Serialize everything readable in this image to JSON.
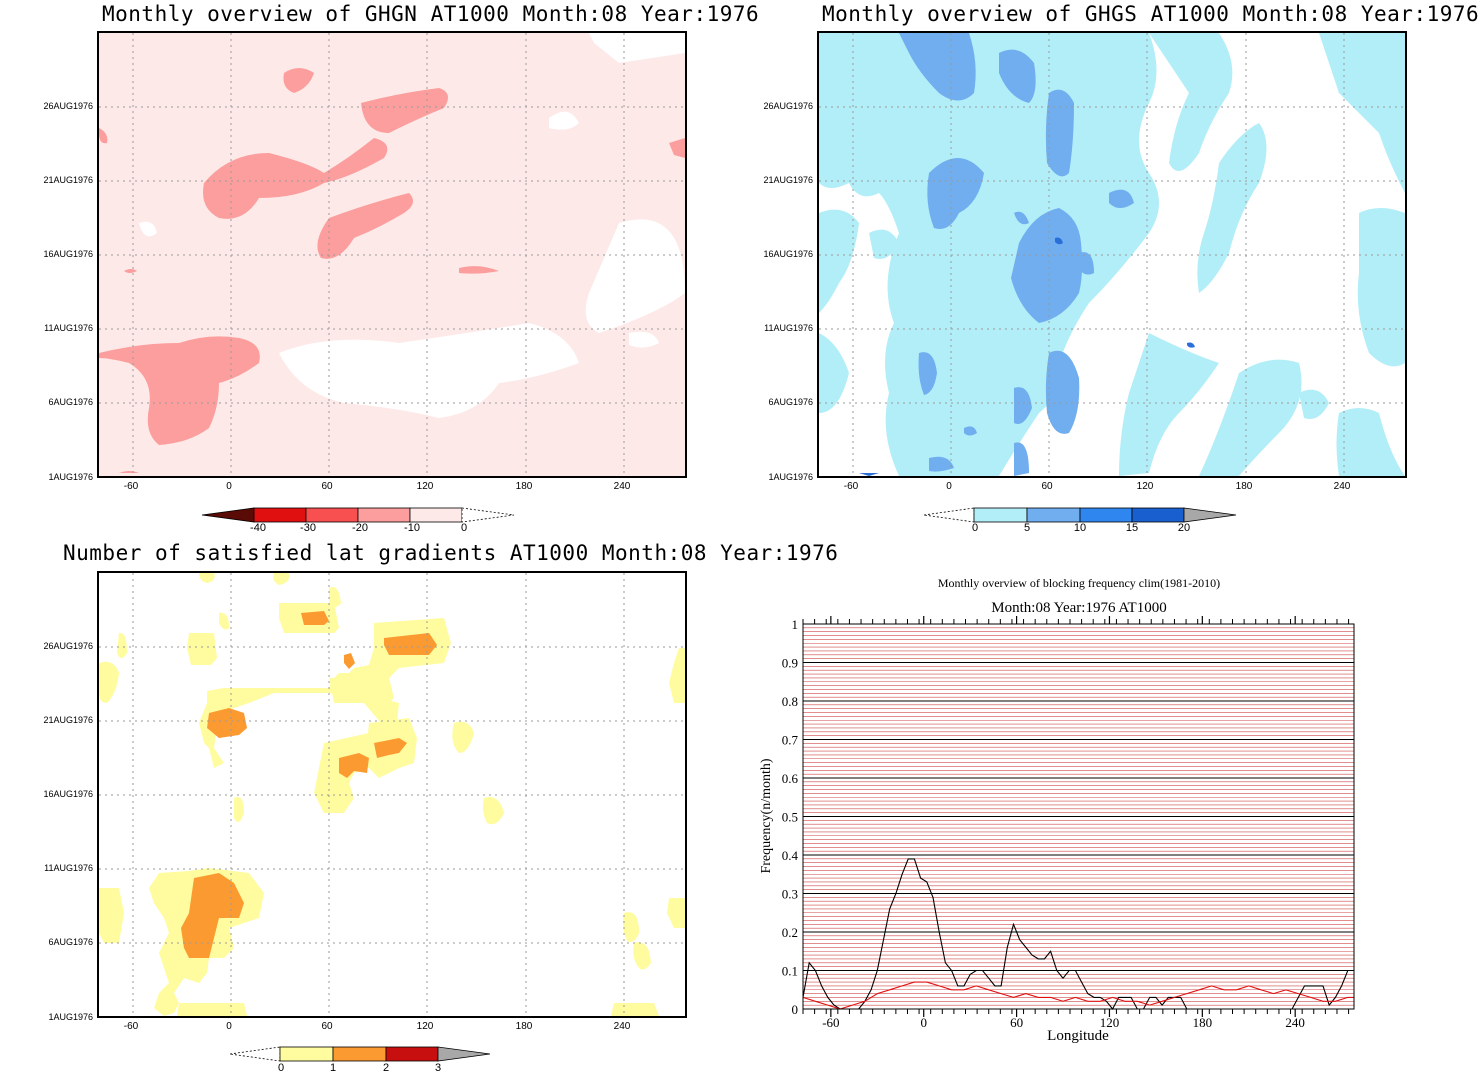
{
  "panels": {
    "ghgn": {
      "title": "Monthly overview of GHGN AT1000 Month:08 Year:1976",
      "fill_color": "#fde9e8",
      "blob_color": "#fb9e9d",
      "white_color": "#ffffff",
      "colorbar": {
        "labels": [
          "-40",
          "-30",
          "-20",
          "-10",
          "0"
        ],
        "colors": [
          "#5a0b05",
          "#e01010",
          "#f85050",
          "#fb9e9d",
          "#fde9e8"
        ]
      }
    },
    "ghgs": {
      "title": "Monthly overview of GHGS AT1000 Month:08 Year:1976",
      "fill_color": "#b2eef8",
      "blob_color": "#70aef0",
      "dark_color": "#2a6fd8",
      "colorbar": {
        "labels": [
          "0",
          "5",
          "10",
          "15",
          "20"
        ],
        "colors": [
          "#b2eef8",
          "#70aef0",
          "#2f86ee",
          "#1a5fcf",
          "#a8a8a8"
        ]
      }
    },
    "lat": {
      "title": "Number of satisfied lat gradients AT1000 Month:08 Year:1976",
      "yellow_color": "#fefc9e",
      "orange_color": "#fc9a32",
      "colorbar": {
        "labels": [
          "0",
          "1",
          "2",
          "3"
        ],
        "colors": [
          "#fefc9e",
          "#fc9a32",
          "#c80f0f",
          "#a8a8a8"
        ]
      }
    }
  },
  "time_axis": {
    "ticks": [
      "26AUG1976",
      "21AUG1976",
      "16AUG1976",
      "11AUG1976",
      "6AUG1976",
      "1AUG1976"
    ]
  },
  "lon_axis": {
    "ticks": [
      "-60",
      "0",
      "60",
      "120",
      "180",
      "240"
    ]
  },
  "chart_data": {
    "type": "line",
    "title": "Monthly overview of blocking frequency clim(1981-2010)",
    "subtitle": "Month:08 Year:1976  AT1000",
    "xlabel": "Longitude",
    "ylabel": "Frequency(n/month)",
    "xlim": [
      -78,
      278
    ],
    "ylim": [
      0,
      1
    ],
    "x_ticks": [
      "-60",
      "0",
      "60",
      "120",
      "180",
      "240"
    ],
    "y_ticks": [
      "0",
      "0.1",
      "0.2",
      "0.3",
      "0.4",
      "0.5",
      "0.6",
      "0.7",
      "0.8",
      "0.9",
      "1"
    ],
    "series": [
      {
        "color": "#000000",
        "x": [
          -78,
          -74,
          -70,
          -66,
          -62,
          -58,
          -54,
          -50,
          -46,
          -42,
          -38,
          -34,
          -30,
          -26,
          -22,
          -18,
          -14,
          -10,
          -6,
          -2,
          2,
          6,
          10,
          14,
          18,
          22,
          26,
          30,
          34,
          38,
          42,
          46,
          50,
          54,
          58,
          62,
          66,
          70,
          74,
          78,
          82,
          86,
          90,
          94,
          98,
          102,
          106,
          110,
          114,
          118,
          122,
          126,
          130,
          134,
          138,
          142,
          146,
          150,
          154,
          158,
          162,
          166,
          170,
          174,
          178,
          182,
          186,
          190,
          194,
          198,
          202,
          206,
          210,
          214,
          218,
          222,
          226,
          230,
          234,
          238,
          242,
          246,
          250,
          254,
          258,
          262,
          266,
          270,
          274,
          278
        ],
        "values": [
          0.03,
          0.12,
          0.1,
          0.06,
          0.03,
          0.01,
          0.0,
          0.0,
          0.0,
          0.0,
          0.02,
          0.05,
          0.1,
          0.18,
          0.26,
          0.3,
          0.35,
          0.39,
          0.39,
          0.34,
          0.33,
          0.29,
          0.2,
          0.12,
          0.1,
          0.06,
          0.06,
          0.09,
          0.1,
          0.1,
          0.08,
          0.06,
          0.06,
          0.16,
          0.22,
          0.18,
          0.16,
          0.14,
          0.13,
          0.13,
          0.15,
          0.1,
          0.08,
          0.1,
          0.1,
          0.07,
          0.04,
          0.03,
          0.03,
          0.02,
          0.0,
          0.03,
          0.03,
          0.03,
          0.0,
          0.0,
          0.03,
          0.03,
          0.01,
          0.03,
          0.03,
          0.03,
          0.0,
          0.0,
          0.0,
          0.0,
          0.0,
          0.0,
          0.0,
          0.0,
          0.0,
          0.0,
          0.0,
          0.0,
          0.0,
          0.0,
          0.0,
          0.0,
          0.0,
          0.0,
          0.03,
          0.06,
          0.06,
          0.06,
          0.06,
          0.01,
          0.03,
          0.06,
          0.1,
          0.1
        ]
      },
      {
        "color": "#e01010",
        "x": [
          -78,
          -70,
          -62,
          -54,
          -46,
          -38,
          -30,
          -22,
          -14,
          -6,
          2,
          10,
          18,
          26,
          34,
          42,
          50,
          58,
          66,
          74,
          82,
          90,
          98,
          106,
          114,
          122,
          130,
          138,
          146,
          154,
          162,
          170,
          178,
          186,
          194,
          202,
          210,
          218,
          226,
          234,
          242,
          250,
          258,
          266,
          274,
          278
        ],
        "values": [
          0.03,
          0.02,
          0.01,
          0.0,
          0.01,
          0.02,
          0.04,
          0.05,
          0.06,
          0.07,
          0.07,
          0.06,
          0.05,
          0.05,
          0.06,
          0.05,
          0.04,
          0.03,
          0.04,
          0.03,
          0.03,
          0.02,
          0.03,
          0.02,
          0.02,
          0.03,
          0.02,
          0.02,
          0.01,
          0.02,
          0.03,
          0.04,
          0.05,
          0.06,
          0.05,
          0.05,
          0.06,
          0.05,
          0.04,
          0.05,
          0.04,
          0.03,
          0.02,
          0.02,
          0.03,
          0.03
        ]
      }
    ]
  }
}
